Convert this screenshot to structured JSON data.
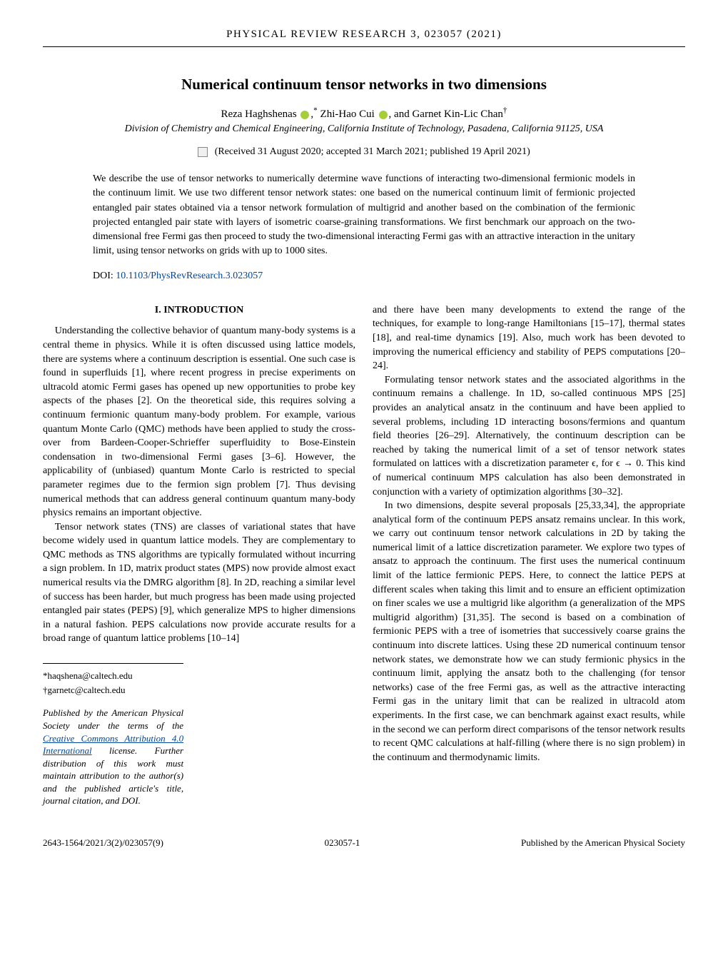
{
  "journal_header": "PHYSICAL REVIEW RESEARCH 3, 023057 (2021)",
  "title": "Numerical continuum tensor networks in two dimensions",
  "authors_html": "Reza Haghshenas <span class='orcid-icon' data-name='orcid-icon' data-interactable='false'></span>,<sup>*</sup> Zhi-Hao Cui <span class='orcid-icon' data-name='orcid-icon' data-interactable='false'></span>, and Garnet Kin-Lic Chan<sup>†</sup>",
  "affiliation": "Division of Chemistry and Chemical Engineering, California Institute of Technology, Pasadena, California 91125, USA",
  "dates": "(Received 31 August 2020; accepted 31 March 2021; published 19 April 2021)",
  "abstract": "We describe the use of tensor networks to numerically determine wave functions of interacting two-dimensional fermionic models in the continuum limit. We use two different tensor network states: one based on the numerical continuum limit of fermionic projected entangled pair states obtained via a tensor network formulation of multigrid and another based on the combination of the fermionic projected entangled pair state with layers of isometric coarse-graining transformations. We first benchmark our approach on the two-dimensional free Fermi gas then proceed to study the two-dimensional interacting Fermi gas with an attractive interaction in the unitary limit, using tensor networks on grids with up to 1000 sites.",
  "doi_label": "DOI: ",
  "doi_link_text": "10.1103/PhysRevResearch.3.023057",
  "section1_heading": "I. INTRODUCTION",
  "col1_p1": "Understanding the collective behavior of quantum many-body systems is a central theme in physics. While it is often discussed using lattice models, there are systems where a continuum description is essential. One such case is found in superfluids [1], where recent progress in precise experiments on ultracold atomic Fermi gases has opened up new opportunities to probe key aspects of the phases [2]. On the theoretical side, this requires solving a continuum fermionic quantum many-body problem. For example, various quantum Monte Carlo (QMC) methods have been applied to study the cross-over from Bardeen-Cooper-Schrieffer superfluidity to Bose-Einstein condensation in two-dimensional Fermi gases [3–6]. However, the applicability of (unbiased) quantum Monte Carlo is restricted to special parameter regimes due to the fermion sign problem [7]. Thus devising numerical methods that can address general continuum quantum many-body physics remains an important objective.",
  "col1_p2": "Tensor network states (TNS) are classes of variational states that have become widely used in quantum lattice models. They are complementary to QMC methods as TNS algorithms are typically formulated without incurring a sign problem. In 1D, matrix product states (MPS) now provide almost exact numerical results via the DMRG algorithm [8]. In 2D, reaching a similar level of success has been harder, but much progress has been made using projected entangled pair states (PEPS) [9], which generalize MPS to higher dimensions in a natural fashion. PEPS calculations now provide accurate results for a broad range of quantum lattice problems [10–14]",
  "col2_p1": "and there have been many developments to extend the range of the techniques, for example to long-range Hamiltonians [15–17], thermal states [18], and real-time dynamics [19]. Also, much work has been devoted to improving the numerical efficiency and stability of PEPS computations [20–24].",
  "col2_p2": "Formulating tensor network states and the associated algorithms in the continuum remains a challenge. In 1D, so-called continuous MPS [25] provides an analytical ansatz in the continuum and have been applied to several problems, including 1D interacting bosons/fermions and quantum field theories [26–29]. Alternatively, the continuum description can be reached by taking the numerical limit of a set of tensor network states formulated on lattices with a discretization parameter ϵ, for ϵ → 0. This kind of numerical continuum MPS calculation has also been demonstrated in conjunction with a variety of optimization algorithms [30–32].",
  "col2_p3": "In two dimensions, despite several proposals [25,33,34], the appropriate analytical form of the continuum PEPS ansatz remains unclear. In this work, we carry out continuum tensor network calculations in 2D by taking the numerical limit of a lattice discretization parameter. We explore two types of ansatz to approach the continuum. The first uses the numerical continuum limit of the lattice fermionic PEPS. Here, to connect the lattice PEPS at different scales when taking this limit and to ensure an efficient optimization on finer scales we use a multigrid like algorithm (a generalization of the MPS multigrid algorithm) [31,35]. The second is based on a combination of fermionic PEPS with a tree of isometries that successively coarse grains the continuum into discrete lattices. Using these 2D numerical continuum tensor network states, we demonstrate how we can study fermionic physics in the continuum limit, applying the ansatz both to the challenging (for tensor networks) case of the free Fermi gas, as well as the attractive interacting Fermi gas in the unitary limit that can be realized in ultracold atom experiments. In the first case, we can benchmark against exact results, while in the second we can perform direct comparisons of the tensor network results to recent QMC calculations at half-filling (where there is no sign problem) in the continuum and thermodynamic limits.",
  "footnote1": "*haqshena@caltech.edu",
  "footnote2": "†garnetc@caltech.edu",
  "license_html": "Published by the American Physical Society under the terms of the <a href='#' class='ref-link' data-name='license-link' data-interactable='true'>Creative Commons Attribution 4.0 International</a> license. Further distribution of this work must maintain attribution to the author(s) and the published article's title, journal citation, and DOI.",
  "footer_left": "2643-1564/2021/3(2)/023057(9)",
  "footer_center": "023057-1",
  "footer_right": "Published by the American Physical Society"
}
